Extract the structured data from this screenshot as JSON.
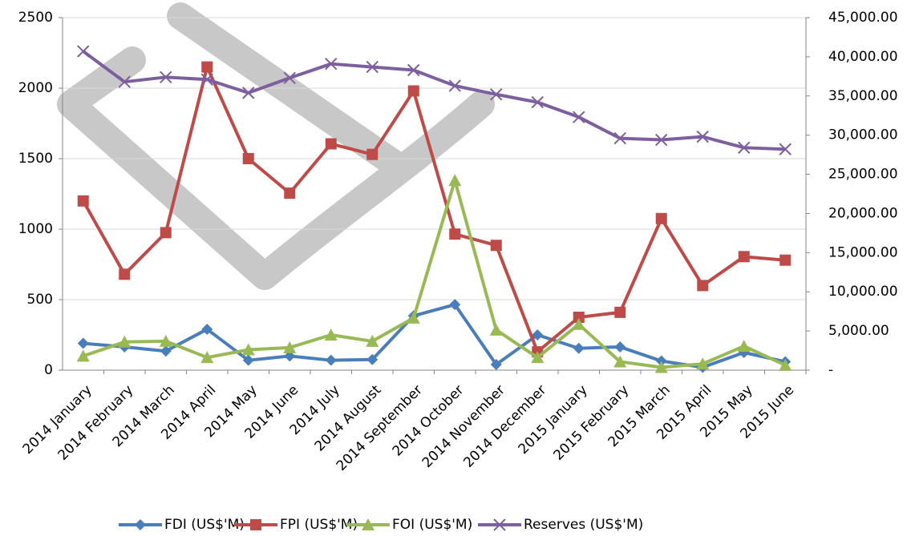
{
  "chart_data": {
    "type": "line",
    "categories": [
      "2014 January",
      "2014 February",
      "2014 March",
      "2014 April",
      "2014 May",
      "2014 June",
      "2014 July",
      "2014 August",
      "2014 September",
      "2014 October",
      "2014 November",
      "2014 December",
      "2015 January",
      "2015 February",
      "2015 March",
      "2015 April",
      "2015 May",
      "2015 June"
    ],
    "series": [
      {
        "name": "FDI (US$'M)",
        "color": "#4a7ebb",
        "marker": "diamond",
        "values": [
          190,
          165,
          135,
          290,
          70,
          100,
          70,
          75,
          385,
          465,
          40,
          250,
          155,
          165,
          65,
          20,
          125,
          60
        ]
      },
      {
        "name": "FPI (US$'M)",
        "color": "#be4b48",
        "marker": "square",
        "values": [
          1200,
          680,
          975,
          2150,
          1500,
          1255,
          1605,
          1530,
          1980,
          965,
          885,
          130,
          375,
          410,
          1075,
          600,
          805,
          780
        ]
      },
      {
        "name": "FOI (US$'M)",
        "color": "#98b954",
        "marker": "triangle",
        "values": [
          100,
          200,
          205,
          90,
          145,
          160,
          250,
          205,
          370,
          1345,
          285,
          90,
          325,
          60,
          20,
          45,
          170,
          35
        ]
      },
      {
        "name": "Reserves (US$'M)",
        "color": "#7d5fa0",
        "marker": "x",
        "axis": "y2",
        "values": [
          40700,
          36800,
          37400,
          37100,
          35400,
          37300,
          39100,
          38700,
          38300,
          36300,
          35200,
          34200,
          32300,
          29600,
          29400,
          29800,
          28400,
          28200
        ]
      }
    ],
    "ylim": [
      0,
      2500
    ],
    "yticks": [
      0,
      500,
      1000,
      1500,
      2000,
      2500
    ],
    "y2lim": [
      0,
      45000
    ],
    "y2ticks": [
      {
        "value": 0,
        "label": "-"
      },
      {
        "value": 5000,
        "label": "5,000.00"
      },
      {
        "value": 10000,
        "label": "10,000.00"
      },
      {
        "value": 15000,
        "label": "15,000.00"
      },
      {
        "value": 20000,
        "label": "20,000.00"
      },
      {
        "value": 25000,
        "label": "25,000.00"
      },
      {
        "value": 30000,
        "label": "30,000.00"
      },
      {
        "value": 35000,
        "label": "35,000.00"
      },
      {
        "value": 40000,
        "label": "40,000.00"
      },
      {
        "value": 45000,
        "label": "45,000.00"
      }
    ],
    "grid": true,
    "legend": "bottom"
  }
}
